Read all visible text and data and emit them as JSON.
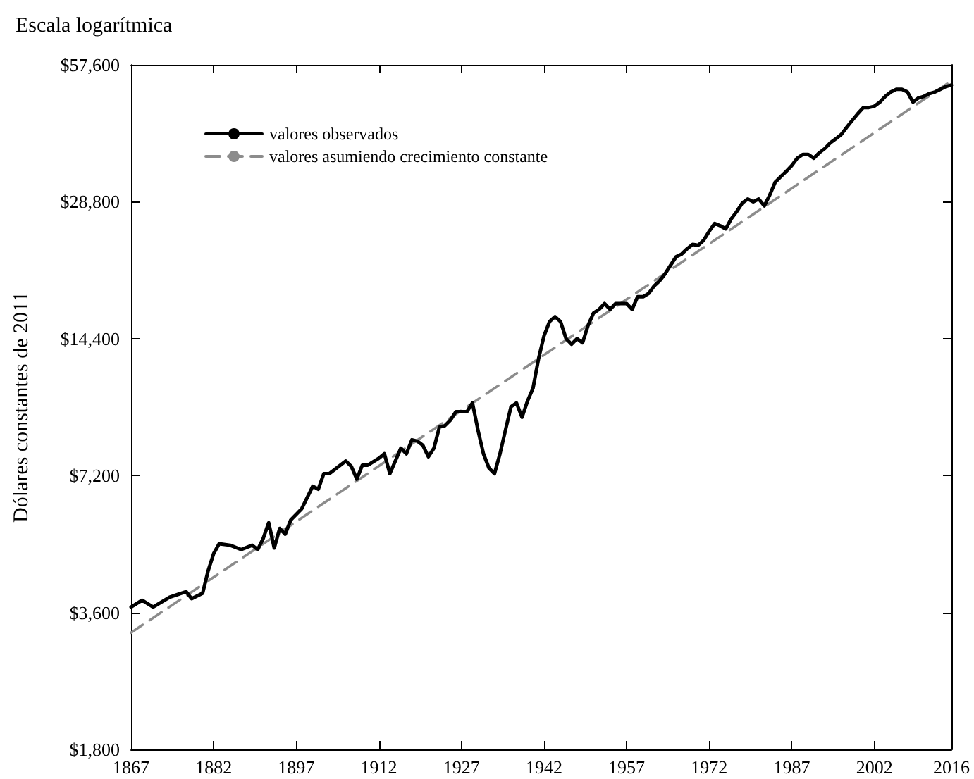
{
  "chart_data": {
    "type": "line",
    "title": "Escala logarítmica",
    "ylabel": "Dólares constantes de 2011",
    "log": "y",
    "legend": "top left",
    "grid": false,
    "marker": "none",
    "xlim": [
      1867,
      2016
    ],
    "xticks": [
      1867,
      1882,
      1897,
      1912,
      1927,
      1942,
      1957,
      1972,
      1987,
      2002,
      2016
    ],
    "ylim": [
      1800,
      57600
    ],
    "yticks": [
      {
        "value": 1800,
        "label": "$1,800"
      },
      {
        "value": 3600,
        "label": "$3,600"
      },
      {
        "value": 7200,
        "label": "$7,200"
      },
      {
        "value": 14400,
        "label": "$14,400"
      },
      {
        "value": 28800,
        "label": "$28,800"
      },
      {
        "value": 57600,
        "label": "$57,600"
      }
    ],
    "series": [
      {
        "name": "valores observados",
        "color": "#000000",
        "line_style": "solid",
        "x": [
          1867,
          1869,
          1871,
          1874,
          1877,
          1878,
          1880,
          1881,
          1882,
          1883,
          1885,
          1887,
          1889,
          1890,
          1891,
          1892,
          1893,
          1894,
          1895,
          1896,
          1898,
          1900,
          1901,
          1902,
          1903,
          1906,
          1907,
          1908,
          1909,
          1910,
          1912,
          1913,
          1914,
          1916,
          1917,
          1918,
          1919,
          1920,
          1921,
          1922,
          1923,
          1924,
          1925,
          1926,
          1927,
          1928,
          1929,
          1930,
          1931,
          1932,
          1933,
          1934,
          1935,
          1936,
          1937,
          1938,
          1939,
          1940,
          1941,
          1942,
          1943,
          1944,
          1945,
          1946,
          1947,
          1948,
          1949,
          1950,
          1951,
          1952,
          1953,
          1954,
          1955,
          1956,
          1957,
          1958,
          1959,
          1960,
          1961,
          1962,
          1963,
          1964,
          1965,
          1966,
          1967,
          1968,
          1969,
          1970,
          1971,
          1972,
          1973,
          1974,
          1975,
          1976,
          1977,
          1978,
          1979,
          1980,
          1981,
          1982,
          1983,
          1984,
          1985,
          1986,
          1987,
          1988,
          1989,
          1990,
          1991,
          1992,
          1993,
          1994,
          1995,
          1996,
          1997,
          1998,
          1999,
          2000,
          2001,
          2002,
          2003,
          2004,
          2005,
          2006,
          2007,
          2008,
          2009,
          2010,
          2011,
          2012,
          2013,
          2014,
          2015,
          2016
        ],
        "values": [
          3700,
          3830,
          3700,
          3890,
          4000,
          3860,
          3970,
          4450,
          4850,
          5100,
          5060,
          4950,
          5060,
          4950,
          5240,
          5670,
          4990,
          5510,
          5350,
          5750,
          6090,
          6820,
          6720,
          7270,
          7270,
          7750,
          7540,
          7070,
          7590,
          7590,
          7860,
          8040,
          7270,
          8270,
          8040,
          8630,
          8570,
          8390,
          7920,
          8270,
          9200,
          9270,
          9530,
          9950,
          9950,
          9950,
          10400,
          9070,
          8040,
          7480,
          7270,
          8040,
          9070,
          10200,
          10400,
          9670,
          10500,
          11200,
          13000,
          14600,
          15700,
          16100,
          15700,
          14400,
          14000,
          14400,
          14100,
          15400,
          16400,
          16700,
          17200,
          16700,
          17200,
          17200,
          17200,
          16700,
          17800,
          17800,
          18100,
          18800,
          19300,
          20000,
          20900,
          21800,
          22100,
          22700,
          23200,
          23100,
          23700,
          24800,
          25800,
          25500,
          25100,
          26400,
          27400,
          28600,
          29200,
          28800,
          29200,
          28200,
          29800,
          31800,
          32700,
          33600,
          34600,
          35900,
          36600,
          36600,
          35900,
          36900,
          37700,
          38800,
          39600,
          40500,
          42000,
          43500,
          45000,
          46400,
          46400,
          46700,
          47700,
          49100,
          50200,
          50900,
          50900,
          50200,
          47700,
          48700,
          49100,
          49800,
          50200,
          50900,
          51600,
          52000
        ]
      },
      {
        "name": "valores asumiendo crecimiento constante",
        "color": "#8c8c8c",
        "line_style": "dashed",
        "x": [
          1867,
          2016
        ],
        "values": [
          3250,
          53100
        ]
      }
    ]
  }
}
